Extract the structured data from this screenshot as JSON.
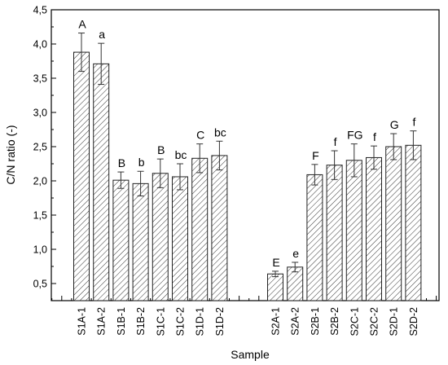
{
  "chart_data": {
    "type": "bar",
    "xlabel": "Sample",
    "ylabel": "C/N ratio (-)",
    "ylim": [
      0.25,
      4.5
    ],
    "yticks": [
      "0,5",
      "1,0",
      "1,5",
      "2,0",
      "2,5",
      "3,0",
      "3,5",
      "4,0",
      "4,5"
    ],
    "grid": false,
    "bar_pattern": "diagonal-hatch",
    "categories": [
      "S1A-1",
      "S1A-2",
      "S1B-1",
      "S1B-2",
      "S1C-1",
      "S1C-2",
      "S1D-1",
      "S1D-2",
      "S2A-1",
      "S2A-2",
      "S2B-1",
      "S2B-2",
      "S2C-1",
      "S2C-2",
      "S2D-1",
      "S2D-2"
    ],
    "values": [
      3.88,
      3.71,
      2.01,
      1.96,
      2.11,
      2.06,
      2.33,
      2.37,
      0.64,
      0.74,
      2.09,
      2.23,
      2.3,
      2.34,
      2.5,
      2.52
    ],
    "errors": [
      0.28,
      0.3,
      0.12,
      0.18,
      0.21,
      0.19,
      0.21,
      0.21,
      0.04,
      0.07,
      0.15,
      0.21,
      0.24,
      0.17,
      0.19,
      0.21
    ],
    "letters": [
      "A",
      "a",
      "B",
      "b",
      "B",
      "bc",
      "C",
      "bc",
      "E",
      "e",
      "F",
      "f",
      "FG",
      "f",
      "G",
      "f"
    ]
  }
}
